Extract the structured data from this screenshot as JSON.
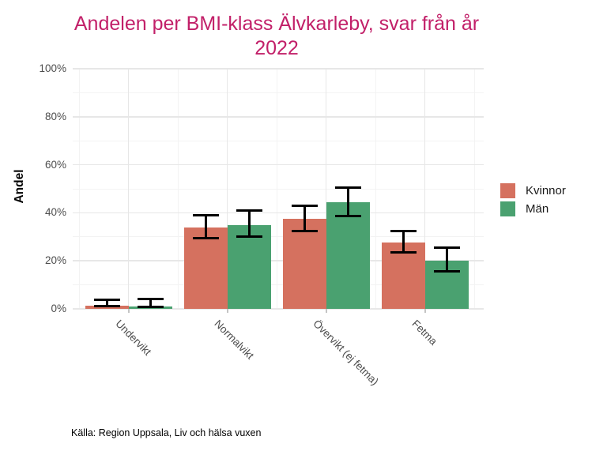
{
  "title": {
    "full": "Andelen per BMI-klass Älvkarleby, svar från år 2022",
    "lines": [
      "Andelen per BMI-klass Älvkarleby, svar från år",
      "2022"
    ],
    "color": "#C22069"
  },
  "caption": "Källa: Region Uppsala, Liv och hälsa vuxen",
  "chart_data": {
    "type": "bar",
    "title": "Andelen per BMI-klass Älvkarleby, svar från år 2022",
    "xlabel": "",
    "ylabel": "Andel",
    "categories": [
      "Undervikt",
      "Normalvikt",
      "Övervikt (ej fetma)",
      "Fetma"
    ],
    "series": [
      {
        "name": "Kvinnor",
        "color": "#D5715F",
        "values": [
          1.4,
          34.0,
          37.4,
          27.5
        ],
        "ci_low": [
          0.6,
          29.0,
          32.0,
          23.0
        ],
        "ci_high": [
          4.4,
          39.5,
          43.4,
          33.0
        ]
      },
      {
        "name": "Män",
        "color": "#4AA170",
        "values": [
          1.0,
          35.0,
          44.3,
          20.1
        ],
        "ci_low": [
          0.4,
          29.5,
          38.3,
          15.2
        ],
        "ci_high": [
          4.5,
          41.5,
          50.9,
          26.1
        ]
      }
    ],
    "ylim": [
      0,
      100
    ],
    "ytick_values": [
      0,
      20,
      40,
      60,
      80,
      100
    ],
    "ytick_labels": [
      "0%",
      "20%",
      "40%",
      "60%",
      "80%",
      "100%"
    ],
    "yminor_values": [
      10,
      30,
      50,
      70,
      90
    ],
    "grid": "on",
    "legend_position": "right",
    "error_bars": true,
    "caption": "Källa: Region Uppsala, Liv och hälsa vuxen"
  }
}
